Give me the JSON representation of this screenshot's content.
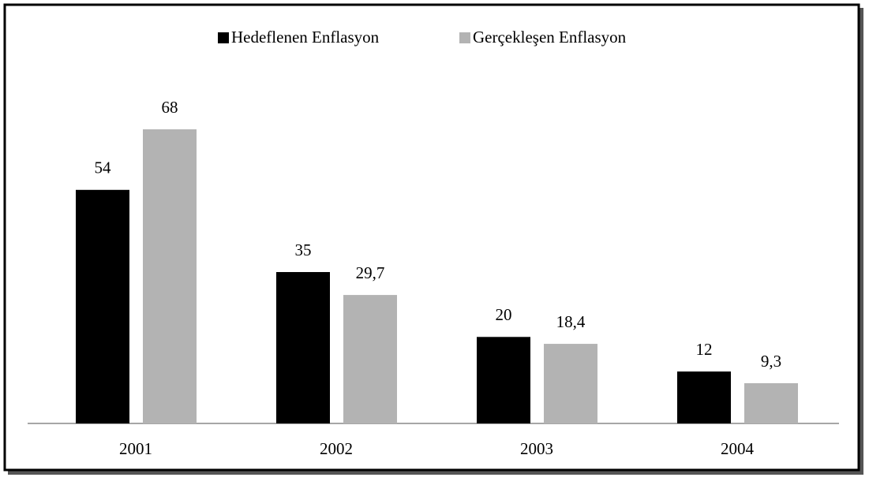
{
  "chart_data": {
    "type": "bar",
    "categories": [
      "2001",
      "2002",
      "2003",
      "2004"
    ],
    "series": [
      {
        "name": "Hedeflenen Enflasyon",
        "color": "#000000",
        "values": [
          54,
          35,
          20,
          12
        ],
        "value_labels": [
          "54",
          "35",
          "20",
          "12"
        ]
      },
      {
        "name": "Gerçekleşen Enflasyon",
        "color": "#b3b3b3",
        "values": [
          68,
          29.7,
          18.4,
          9.3
        ],
        "value_labels": [
          "68",
          "29,7",
          "18,4",
          "9,3"
        ]
      }
    ],
    "legend": "top"
  }
}
